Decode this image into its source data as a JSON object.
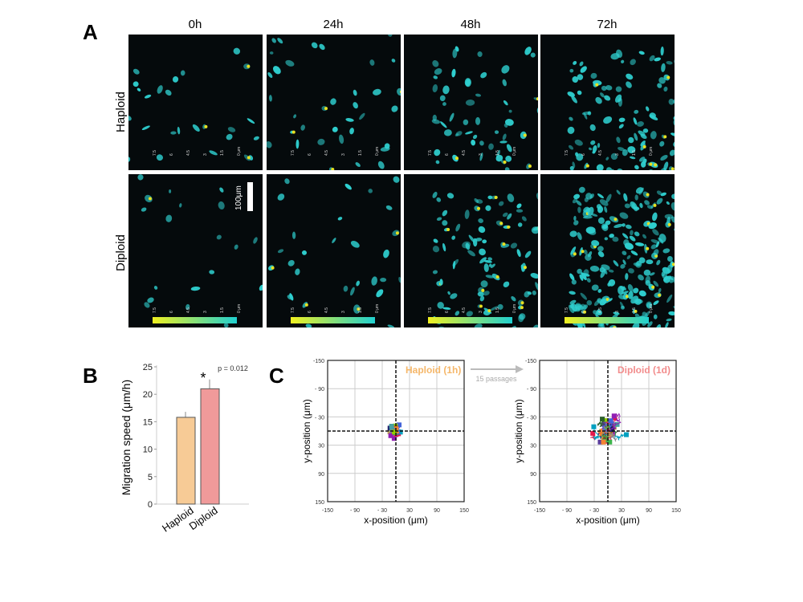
{
  "panel_a": {
    "label": "A",
    "columns": [
      "0h",
      "24h",
      "48h",
      "72h"
    ],
    "rows": [
      "Haploid",
      "Diploid"
    ],
    "scale_bar": "100μm",
    "colorbar_ticks": [
      "7.5",
      "6",
      "4.5",
      "3",
      "1.5",
      "0 μm"
    ],
    "colors": {
      "cells": "#2fd0d0",
      "highlight": "#e8e020",
      "background": "#050a0c"
    }
  },
  "panel_b": {
    "label": "B"
  },
  "panel_c": {
    "label": "C",
    "arrow_label": "15 passages"
  },
  "chart_data": [
    {
      "type": "bar",
      "categories": [
        "Haploid",
        "Diploid"
      ],
      "values": [
        15.8,
        21.0
      ],
      "errors": [
        1.0,
        1.7
      ],
      "ylabel": "Migration speed (μm/h)",
      "ylim": [
        0,
        25
      ],
      "yticks": [
        "0",
        "5",
        "10",
        "15",
        "20",
        "25"
      ],
      "annotation": "p = 0.012",
      "significance": "*",
      "colors": [
        "#f7cb96",
        "#f09a9a"
      ]
    },
    {
      "type": "line",
      "title": "Haploid (1h)",
      "title_color": "#f5b76a",
      "xlabel": "x-position (μm)",
      "ylabel": "y-position (μm)",
      "xlim": [
        -150,
        150
      ],
      "ylim": [
        -150,
        150
      ],
      "xticks": [
        "-150",
        "- 90",
        "- 30",
        "30",
        "90",
        "150"
      ],
      "yticks": [
        "-150",
        "- 90",
        "- 30",
        "30",
        "90",
        "150"
      ],
      "grid": true
    },
    {
      "type": "line",
      "title": "Diploid (1d)",
      "title_color": "#f28c8c",
      "xlabel": "x-position (μm)",
      "ylabel": "y-position (μm)",
      "xlim": [
        -150,
        150
      ],
      "ylim": [
        -150,
        150
      ],
      "xticks": [
        "-150",
        "- 90",
        "- 30",
        "30",
        "90",
        "150"
      ],
      "yticks": [
        "-150",
        "- 90",
        "- 30",
        "30",
        "90",
        "150"
      ],
      "grid": true
    }
  ]
}
